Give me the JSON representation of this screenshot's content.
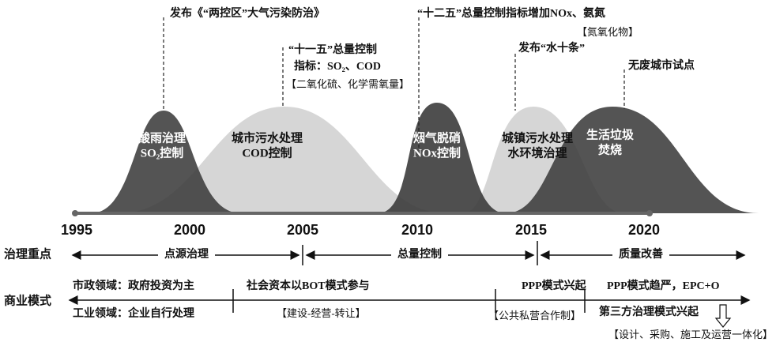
{
  "timeline": {
    "years": [
      "1995",
      "2000",
      "2005",
      "2010",
      "2015",
      "2020"
    ]
  },
  "curves": [
    {
      "lines": [
        "酸雨治理",
        "SO₂控制"
      ]
    },
    {
      "lines": [
        "城市污水处理",
        "COD控制"
      ]
    },
    {
      "lines": [
        "烟气脱硝",
        "NOx控制"
      ]
    },
    {
      "lines": [
        "城镇污水处理",
        "水环境治理"
      ]
    },
    {
      "lines": [
        "生活垃圾",
        "焚烧"
      ]
    }
  ],
  "annotations": [
    {
      "lines": [
        "发布《“两控区”大气污染防治》"
      ]
    },
    {
      "lines": [
        "“十一五”总量控制",
        "指标：SO₂、COD",
        "【二氧化硫、化学需氧量】"
      ]
    },
    {
      "lines": [
        "“十二五”总量控制指标增加NOx、氨氮",
        "【氮氧化物】"
      ]
    },
    {
      "lines": [
        "发布“水十条”"
      ]
    },
    {
      "lines": [
        "无废城市试点"
      ]
    }
  ],
  "governance": {
    "label": "治理重点",
    "phases": [
      "点源治理",
      "总量控制",
      "质量改善"
    ]
  },
  "business": {
    "label": "商业模式",
    "items": [
      "市政领域：政府投资为主",
      "工业领域：企业自行处理",
      "社会资本以BOT模式参与",
      "【建设-经营-转让】",
      "PPP模式兴起",
      "【公共私营合作制】",
      "PPP模式趋严，EPC+O",
      "第三方治理模式兴起",
      "【设计、采购、施工及运营一体化】"
    ]
  }
}
